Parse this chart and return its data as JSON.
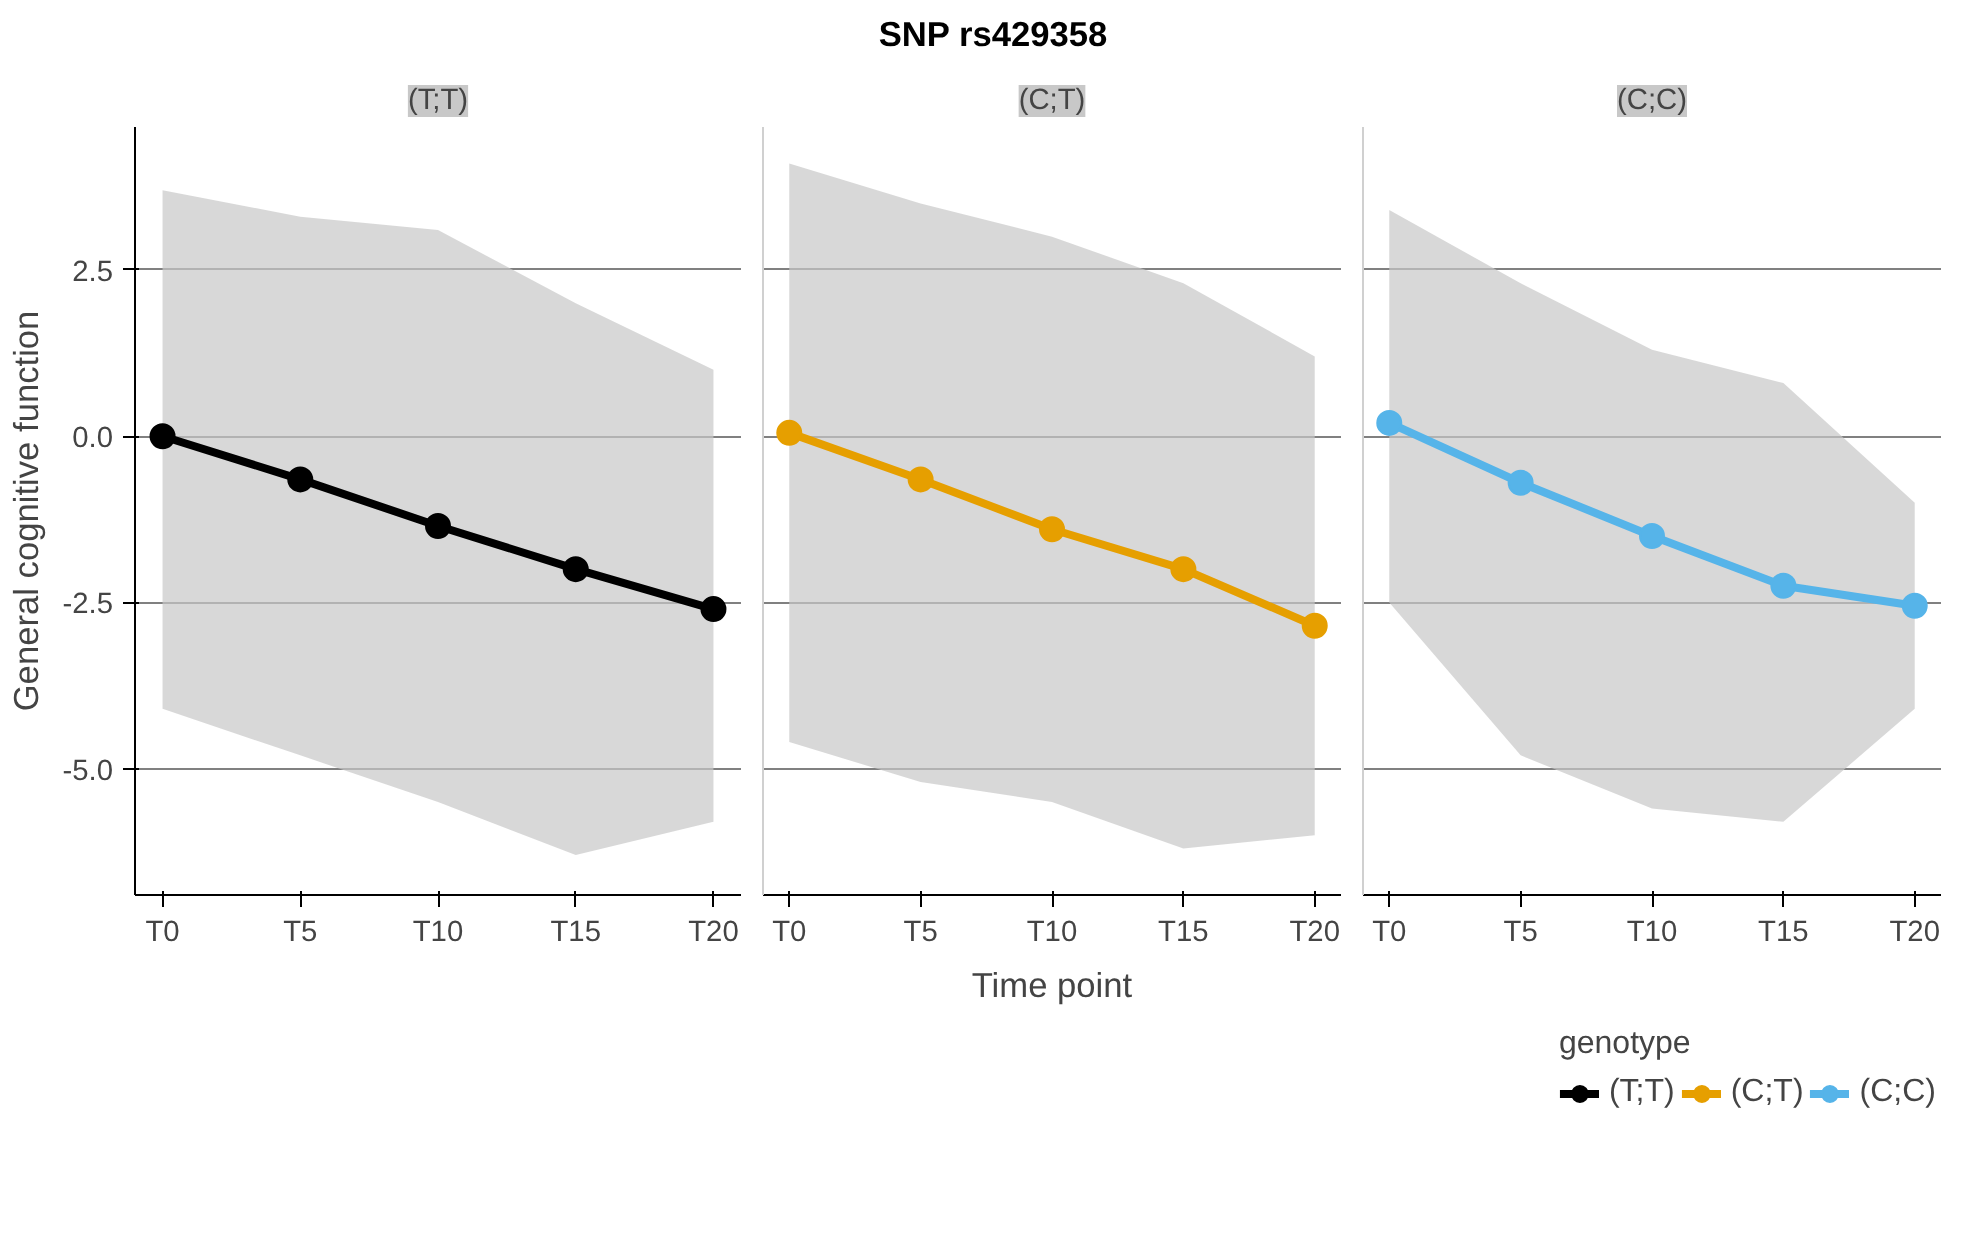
{
  "chart_data": [
    {
      "type": "line",
      "subtitle": "(T;T)",
      "ylabel": "General cognitive function",
      "categories": [
        "T0",
        "T5",
        "T10",
        "T15",
        "T20"
      ],
      "ylim": [
        -6.9,
        4.65
      ],
      "yticks": [
        {
          "value": -5,
          "label": "-5.0"
        },
        {
          "value": -2.5,
          "label": "-2.5"
        },
        {
          "value": 0,
          "label": "0.0"
        },
        {
          "value": 2.5,
          "label": "2.5"
        }
      ],
      "grid": "y",
      "marker": "circle",
      "legend": "bottom right",
      "legend_title": "genotype",
      "series": [
        {
          "name": "(T;T)",
          "color": "#000000",
          "values": [
            0.0,
            -0.65,
            -1.35,
            -2.0,
            -2.6
          ],
          "lower": [
            -4.1,
            -4.8,
            -5.5,
            -6.3,
            -5.8
          ],
          "upper": [
            3.7,
            3.3,
            3.1,
            2.0,
            1.0
          ]
        }
      ]
    },
    {
      "type": "line",
      "title": "SNP rs429358",
      "subtitle": "(C;T)",
      "xlabel": "Time point",
      "categories": [
        "T0",
        "T5",
        "T10",
        "T15",
        "T20"
      ],
      "ylim": [
        -6.9,
        4.65
      ],
      "yticks": [
        -5,
        -2.5,
        0,
        2.5
      ],
      "grid": "y",
      "marker": "circle",
      "legend": "bottom right",
      "tick_labels": "x",
      "series": [
        {
          "name": "(C;T)",
          "color": "#e69f00",
          "values": [
            0.05,
            -0.65,
            -1.4,
            -2.0,
            -2.85
          ],
          "lower": [
            -4.6,
            -5.2,
            -5.5,
            -6.2,
            -6.0
          ],
          "upper": [
            4.1,
            3.5,
            3.0,
            2.3,
            1.2
          ]
        }
      ]
    },
    {
      "type": "line",
      "subtitle": "(C;C)",
      "categories": [
        "T0",
        "T5",
        "T10",
        "T15",
        "T20"
      ],
      "ylim": [
        -6.9,
        4.65
      ],
      "yticks": [
        -5,
        -2.5,
        0,
        2.5
      ],
      "grid": "y",
      "marker": "circle",
      "legend": "bottom right",
      "tick_labels": "x",
      "series": [
        {
          "name": "(C;C)",
          "color": "#56b4e9",
          "values": [
            0.2,
            -0.7,
            -1.5,
            -2.25,
            -2.55
          ],
          "lower": [
            -2.5,
            -4.8,
            -5.6,
            -5.8,
            -4.1
          ],
          "upper": [
            3.4,
            2.3,
            1.3,
            0.8,
            -1.0
          ]
        }
      ]
    }
  ]
}
